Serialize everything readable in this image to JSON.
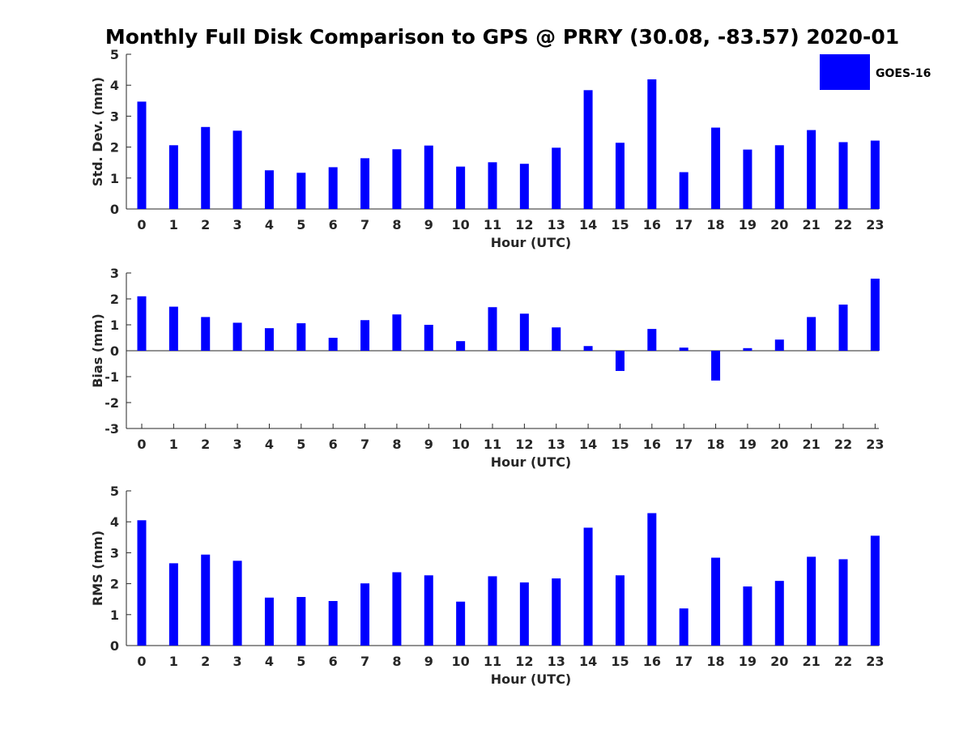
{
  "chart_data": {
    "title": "Monthly Full Disk Comparison to GPS @ PRRY (30.08, -83.57) 2020-01",
    "legend": {
      "label": "GOES-16",
      "color": "#0000ff",
      "placement": "top-right"
    },
    "panels": [
      {
        "type": "bar",
        "name": "std-dev",
        "xlabel": "Hour (UTC)",
        "ylabel": "Std. Dev. (mm)",
        "ylim": [
          0,
          5
        ],
        "yticks": [
          "0",
          "1",
          "2",
          "3",
          "4",
          "5"
        ],
        "categories": [
          "0",
          "1",
          "2",
          "3",
          "4",
          "5",
          "6",
          "7",
          "8",
          "9",
          "10",
          "11",
          "12",
          "13",
          "14",
          "15",
          "16",
          "17",
          "18",
          "19",
          "20",
          "21",
          "22",
          "23"
        ],
        "values": [
          3.47,
          2.06,
          2.65,
          2.53,
          1.25,
          1.17,
          1.35,
          1.64,
          1.93,
          2.05,
          1.37,
          1.51,
          1.46,
          1.98,
          3.84,
          2.14,
          4.19,
          1.19,
          2.63,
          1.92,
          2.06,
          2.55,
          2.16,
          2.21
        ]
      },
      {
        "type": "bar",
        "name": "bias",
        "xlabel": "Hour (UTC)",
        "ylabel": "Bias (mm)",
        "ylim": [
          -3,
          3
        ],
        "yticks": [
          "-3",
          "-2",
          "-1",
          "0",
          "1",
          "2",
          "3"
        ],
        "categories": [
          "0",
          "1",
          "2",
          "3",
          "4",
          "5",
          "6",
          "7",
          "8",
          "9",
          "10",
          "11",
          "12",
          "13",
          "14",
          "15",
          "16",
          "17",
          "18",
          "19",
          "20",
          "21",
          "22",
          "23"
        ],
        "values": [
          2.1,
          1.7,
          1.3,
          1.08,
          0.87,
          1.06,
          0.5,
          1.18,
          1.4,
          1.0,
          0.37,
          1.68,
          1.43,
          0.9,
          0.18,
          -0.78,
          0.84,
          0.12,
          -1.15,
          0.1,
          0.43,
          1.3,
          1.78,
          2.78
        ]
      },
      {
        "type": "bar",
        "name": "rms",
        "xlabel": "Hour (UTC)",
        "ylabel": "RMS (mm)",
        "ylim": [
          0,
          5
        ],
        "yticks": [
          "0",
          "1",
          "2",
          "3",
          "4",
          "5"
        ],
        "categories": [
          "0",
          "1",
          "2",
          "3",
          "4",
          "5",
          "6",
          "7",
          "8",
          "9",
          "10",
          "11",
          "12",
          "13",
          "14",
          "15",
          "16",
          "17",
          "18",
          "19",
          "20",
          "21",
          "22",
          "23"
        ],
        "values": [
          4.05,
          2.66,
          2.94,
          2.74,
          1.55,
          1.57,
          1.44,
          2.01,
          2.37,
          2.27,
          1.42,
          2.24,
          2.04,
          2.17,
          3.81,
          2.27,
          4.28,
          1.2,
          2.84,
          1.91,
          2.09,
          2.87,
          2.79,
          3.55
        ]
      }
    ]
  }
}
